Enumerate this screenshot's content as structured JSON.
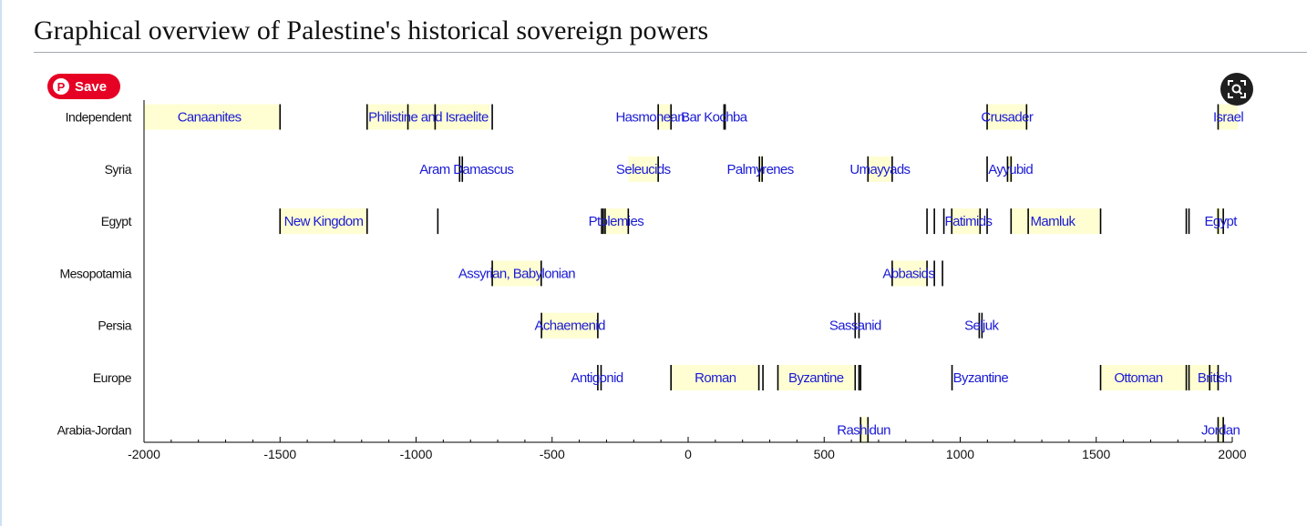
{
  "page": {
    "title": "Graphical overview of Palestine's historical sovereign powers"
  },
  "overlay": {
    "save_label": "Save",
    "pin_glyph": "P"
  },
  "icons": {
    "save": "pinterest-icon",
    "lens": "visual-search-icon"
  },
  "chart_data": {
    "type": "timeline",
    "colors": {
      "band": "#fefed2",
      "label": "#1a1ad6",
      "tick": "#000000"
    },
    "xlim": [
      -2000,
      2000
    ],
    "xticks": [
      -2000,
      -1500,
      -1000,
      -500,
      0,
      500,
      1000,
      1500,
      2000
    ],
    "rows": [
      {
        "name": "Independent",
        "bands": [
          [
            -2000,
            -1500
          ],
          [
            -1180,
            -730
          ],
          [
            -110,
            -60
          ],
          [
            1099,
            1250
          ],
          [
            1948,
            2020
          ]
        ],
        "marks": [
          -1500,
          -1180,
          -1030,
          -930,
          -720,
          -110,
          -63,
          132,
          136,
          1099,
          1244,
          1948
        ],
        "labels": [
          {
            "text": "Canaanites",
            "x": -1760
          },
          {
            "text": "Philistine and Israelite",
            "x": -955
          },
          {
            "text": "Hasmonean",
            "x": -140
          },
          {
            "text": "Bar Kochba",
            "x": 95
          },
          {
            "text": "Crusader",
            "x": 1172
          },
          {
            "text": "Israel",
            "x": 1985
          }
        ]
      },
      {
        "name": "Syria",
        "bands": [
          [
            -220,
            -110
          ],
          [
            260,
            275
          ],
          [
            661,
            750
          ],
          [
            1174,
            1193
          ]
        ],
        "marks": [
          -840,
          -830,
          -110,
          262,
          272,
          661,
          750,
          1099,
          1174,
          1187
        ],
        "labels": [
          {
            "text": "Aram Damascus",
            "x": -815
          },
          {
            "text": "Seleucids",
            "x": -165
          },
          {
            "text": "Palmyrenes",
            "x": 265
          },
          {
            "text": "Umayyads",
            "x": 705
          },
          {
            "text": "Ayyubid",
            "x": 1185
          }
        ]
      },
      {
        "name": "Egypt",
        "bands": [
          [
            -1500,
            -1180
          ],
          [
            -310,
            -220
          ],
          [
            970,
            1080
          ],
          [
            1187,
            1250
          ],
          [
            1250,
            1516
          ],
          [
            1940,
            1960
          ]
        ],
        "marks": [
          -1500,
          -1180,
          -920,
          -318,
          -312,
          -305,
          -220,
          878,
          905,
          940,
          969,
          1073,
          1099,
          1187,
          1250,
          1516,
          1831,
          1841,
          1948,
          1967
        ],
        "labels": [
          {
            "text": "New Kingdom",
            "x": -1340
          },
          {
            "text": "Ptolemies",
            "x": -265
          },
          {
            "text": "Fatimids",
            "x": 1030
          },
          {
            "text": "Mamluk",
            "x": 1340
          },
          {
            "text": "Egypt",
            "x": 1957
          }
        ]
      },
      {
        "name": "Mesopotamia",
        "bands": [
          [
            -720,
            -540
          ],
          [
            750,
            880
          ]
        ],
        "marks": [
          -720,
          -540,
          750,
          878,
          905,
          935
        ],
        "labels": [
          {
            "text": "Assyrian, Babylonian",
            "x": -630
          },
          {
            "text": "Abbasids",
            "x": 810
          }
        ]
      },
      {
        "name": "Persia",
        "bands": [
          [
            -540,
            -330
          ]
        ],
        "marks": [
          -539,
          -332,
          614,
          628,
          1070,
          1080
        ],
        "labels": [
          {
            "text": "Achaemenid",
            "x": -435
          },
          {
            "text": "Sassanid",
            "x": 614
          },
          {
            "text": "Seljuk",
            "x": 1078
          }
        ]
      },
      {
        "name": "Europe",
        "bands": [
          [
            -63,
            260
          ],
          [
            330,
            614
          ],
          [
            1516,
            1917
          ],
          [
            1917,
            1948
          ]
        ],
        "marks": [
          -332,
          -320,
          -63,
          260,
          275,
          330,
          614,
          628,
          634,
          970,
          1516,
          1831,
          1841,
          1917,
          1948
        ],
        "labels": [
          {
            "text": "Antigonid",
            "x": -335
          },
          {
            "text": "Roman",
            "x": 100
          },
          {
            "text": "Byzantine",
            "x": 470
          },
          {
            "text": "Byzantine",
            "x": 1075
          },
          {
            "text": "Ottoman",
            "x": 1655
          },
          {
            "text": "British",
            "x": 1935
          }
        ]
      },
      {
        "name": "Arabia-Jordan",
        "bands": [
          [
            634,
            661
          ],
          [
            1948,
            1967
          ]
        ],
        "marks": [
          634,
          661,
          1948,
          1967
        ],
        "labels": [
          {
            "text": "Rashidun",
            "x": 645
          },
          {
            "text": "Jordan",
            "x": 1957
          }
        ]
      }
    ]
  }
}
